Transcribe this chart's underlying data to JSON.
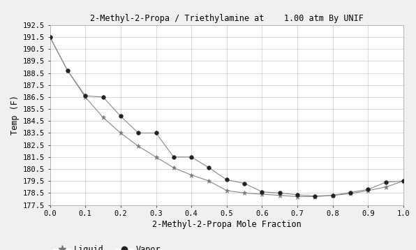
{
  "title": "2-Methyl-2-Propa / Triethylamine at    1.00 atm By UNIF",
  "xlabel": "2-Methyl-2-Propa Mole Fraction",
  "ylabel": "Temp (F)",
  "ylim": [
    177.5,
    192.5
  ],
  "xlim": [
    0.0,
    1.0
  ],
  "yticks": [
    177.5,
    178.5,
    179.5,
    180.5,
    181.5,
    182.5,
    183.5,
    184.5,
    185.5,
    186.5,
    187.5,
    188.5,
    189.5,
    190.5,
    191.5,
    192.5
  ],
  "xticks": [
    0.0,
    0.1,
    0.2,
    0.3,
    0.4,
    0.5,
    0.6,
    0.7,
    0.8,
    0.9,
    1.0
  ],
  "liquid_x": [
    0.0,
    0.05,
    0.1,
    0.15,
    0.2,
    0.25,
    0.3,
    0.35,
    0.4,
    0.45,
    0.5,
    0.55,
    0.6,
    0.65,
    0.7,
    0.75,
    0.8,
    0.85,
    0.9,
    0.95,
    1.0
  ],
  "liquid_y": [
    191.5,
    188.7,
    186.5,
    184.8,
    183.5,
    182.4,
    181.5,
    180.6,
    180.0,
    179.5,
    178.7,
    178.5,
    178.4,
    178.3,
    178.2,
    178.2,
    178.3,
    178.45,
    178.7,
    179.0,
    179.5
  ],
  "vapor_x": [
    0.0,
    0.05,
    0.1,
    0.15,
    0.2,
    0.25,
    0.3,
    0.35,
    0.4,
    0.45,
    0.5,
    0.55,
    0.6,
    0.65,
    0.7,
    0.75,
    0.8,
    0.85,
    0.9,
    0.95,
    1.0
  ],
  "vapor_y": [
    191.5,
    188.7,
    186.6,
    186.5,
    184.9,
    183.5,
    183.5,
    181.5,
    181.5,
    180.6,
    179.6,
    179.3,
    178.6,
    178.5,
    178.35,
    178.25,
    178.3,
    178.55,
    178.8,
    179.4,
    179.5
  ],
  "line_color": "#888888",
  "liquid_marker_color": "#777777",
  "vapor_marker_color": "#222222",
  "bg_color": "#f0f0f0",
  "plot_bg_color": "#ffffff",
  "grid_color": "#cccccc",
  "font_family": "monospace",
  "title_fontsize": 8.5,
  "label_fontsize": 8.5,
  "tick_fontsize": 7.5,
  "legend_fontsize": 8.5
}
